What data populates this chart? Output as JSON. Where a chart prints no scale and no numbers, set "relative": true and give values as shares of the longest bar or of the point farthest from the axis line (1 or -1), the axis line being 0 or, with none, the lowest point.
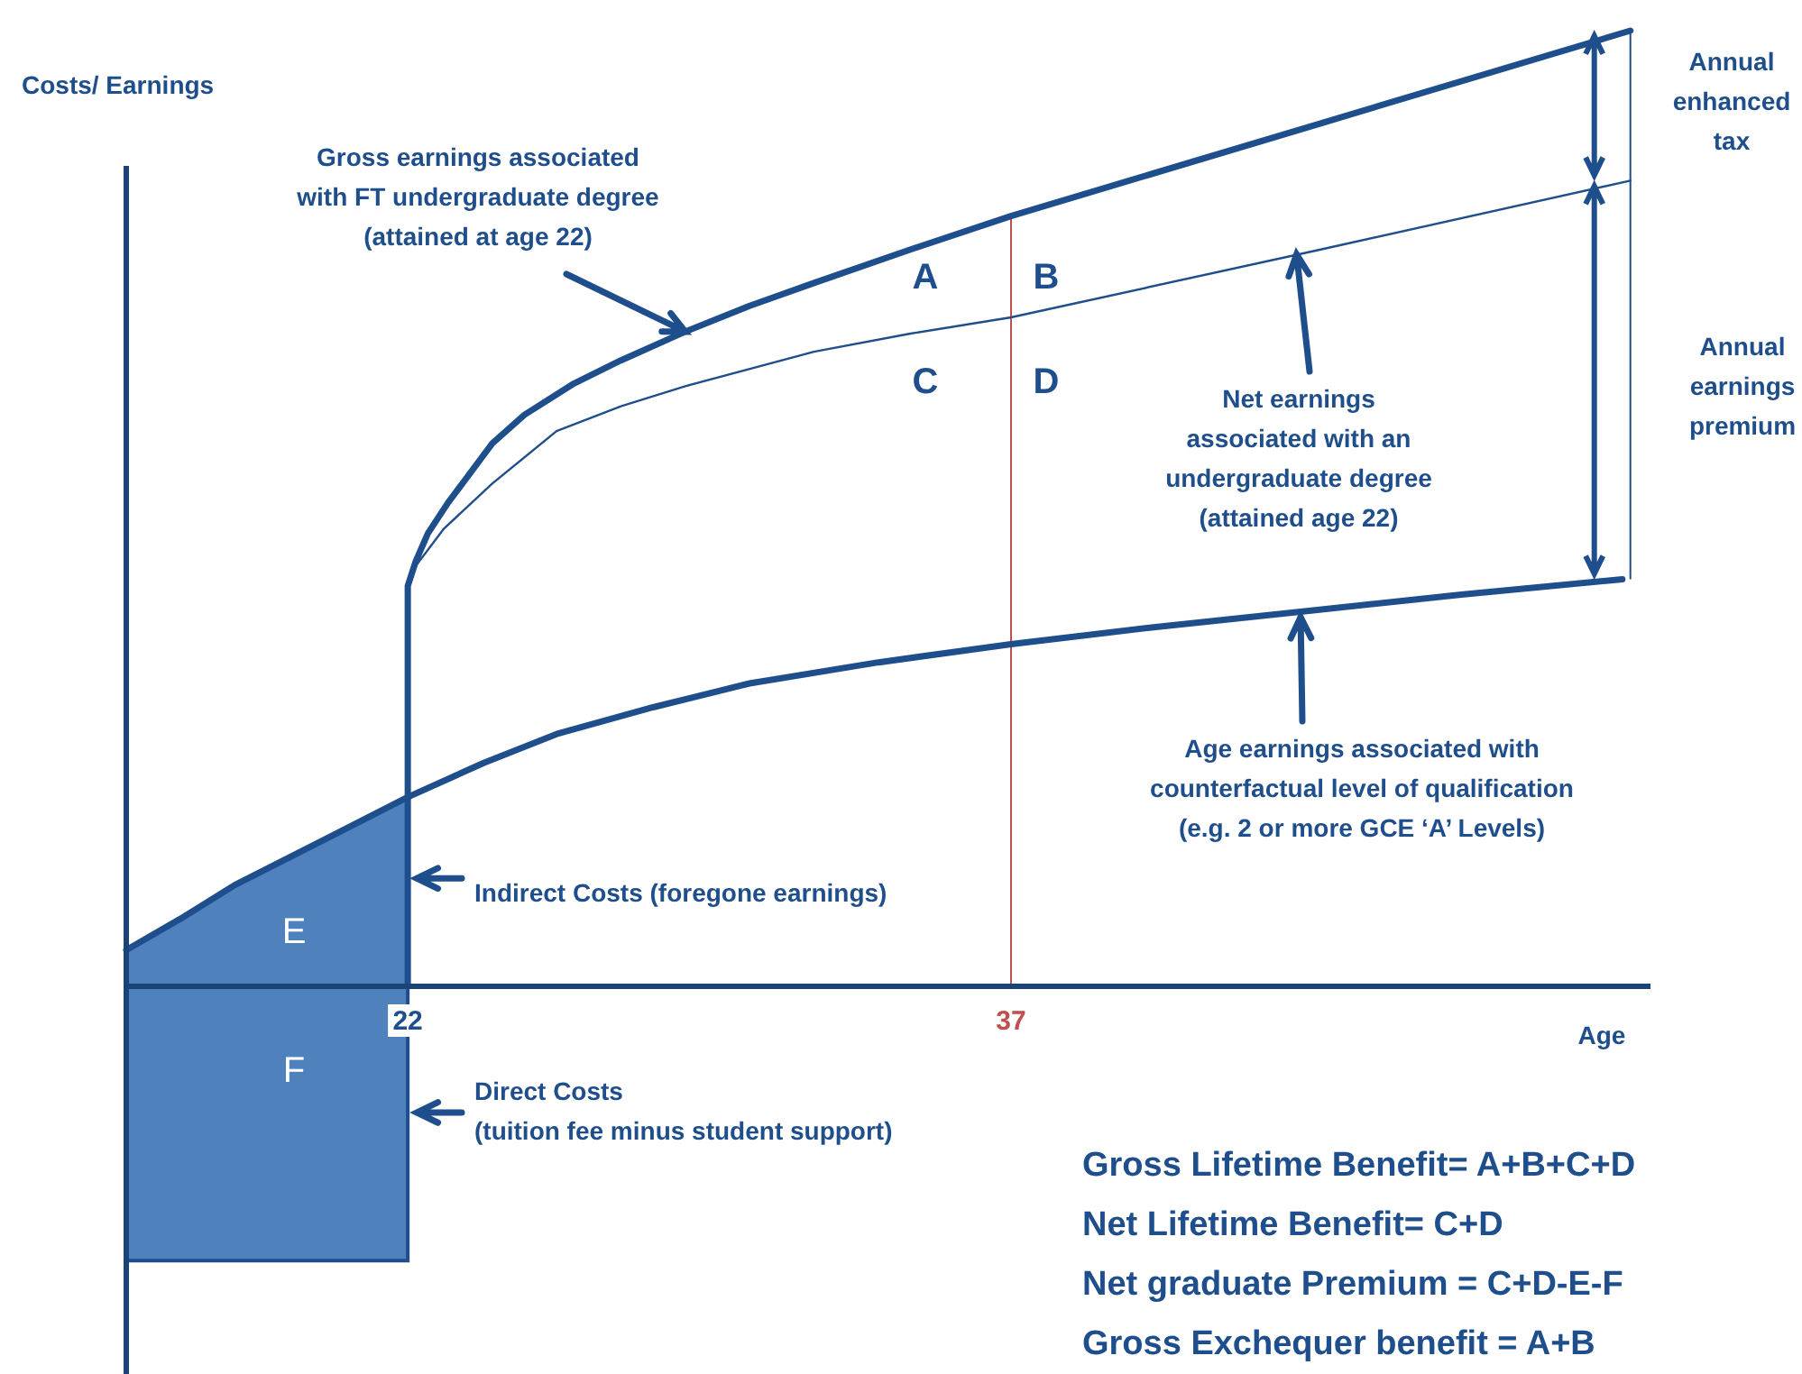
{
  "chart_data": {
    "type": "line",
    "relative": true,
    "xlabel": "Age",
    "ylabel": "Costs/ Earnings",
    "xlim": [
      15,
      52.9
    ],
    "xticks": [
      22,
      37
    ],
    "grid": false,
    "series": [
      {
        "color": "#1f4e8c",
        "x": [
          22,
          22,
          22.2,
          22.5,
          23,
          24.1,
          24.9,
          26.1,
          27.3,
          28.9,
          30.5,
          32.1,
          34.5,
          37,
          44.7,
          52.4
        ],
        "values": [
          0,
          0.419,
          0.445,
          0.474,
          0.506,
          0.568,
          0.598,
          0.63,
          0.655,
          0.685,
          0.712,
          0.736,
          0.771,
          0.806,
          0.903,
          1
        ]
      },
      {
        "color": "#1f4e8c",
        "x": [
          22,
          22.2,
          22.9,
          24.1,
          25.7,
          27.3,
          28.9,
          32.1,
          34.5,
          37,
          44.7,
          52.4
        ],
        "values": [
          0.419,
          0.44,
          0.479,
          0.526,
          0.581,
          0.607,
          0.628,
          0.664,
          0.683,
          0.7,
          0.771,
          0.843
        ]
      },
      {
        "color": "#1f4e8c",
        "x": [
          15,
          16.4,
          17.7,
          19.9,
          22,
          23.9,
          25.7,
          28.1,
          30.5,
          33.7,
          37,
          40.6,
          44.2,
          48.2,
          52.2
        ],
        "values": [
          0.038,
          0.072,
          0.106,
          0.153,
          0.198,
          0.234,
          0.264,
          0.292,
          0.317,
          0.339,
          0.358,
          0.376,
          0.392,
          0.41,
          0.426
        ]
      },
      {
        "type": "area",
        "color": "#4f81bd",
        "x": [
          15,
          17.7,
          22
        ],
        "values": [
          0.038,
          0.106,
          0.198
        ]
      },
      {
        "type": "area",
        "color": "#4f81bd",
        "x": [
          15,
          22
        ],
        "values": [
          -0.287,
          -0.287
        ]
      }
    ],
    "ref_lines": [
      {
        "axis": "x",
        "value": 37,
        "color": "#c0504d"
      }
    ],
    "annotations": [
      "A",
      "B",
      "C",
      "D",
      "E",
      "F",
      {
        "text": "Gross earnings associated\nwith FT undergraduate degree\n(attained at age 22)",
        "x": 28.9,
        "y": 0.685
      },
      {
        "text": "Net earnings\nassociated with an\nundergraduate degree\n(attained age 22)",
        "x": 44.1,
        "y": 0.766
      },
      {
        "text": "Age earnings associated with\ncounterfactual level of qualification\n(e.g. 2 or more GCE ‘A’ Levels)",
        "x": 44.2,
        "y": 0.392
      },
      {
        "text": "Indirect Costs (foregone earnings)",
        "x": 22,
        "y": 0.113
      },
      {
        "text": "Direct Costs\n(tuition fee minus student support)",
        "x": 22,
        "y": -0.132
      },
      "Annual\nenhanced\ntax",
      "Annual\nearnings\npremium",
      "Gross Lifetime Benefit= A+B+C+D\nNet Lifetime Benefit= C+D\nNet graduate Premium = C+D-E-F\nGross Exchequer benefit = A+B"
    ]
  }
}
